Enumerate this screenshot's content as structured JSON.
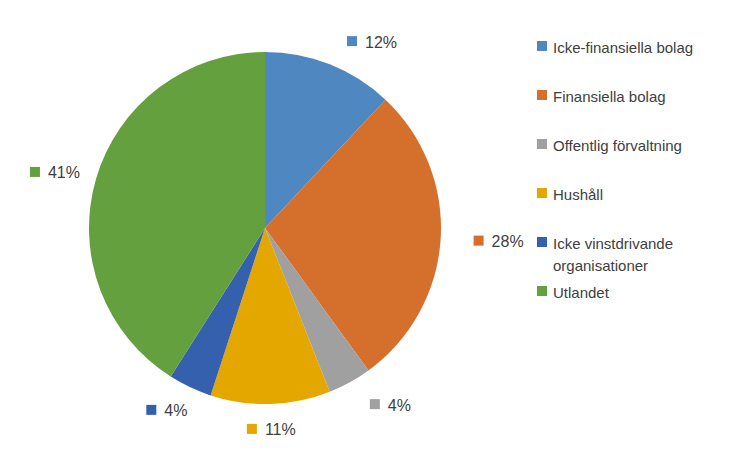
{
  "chart_data": {
    "type": "pie",
    "categories": [
      "Icke-finansiella bolag",
      "Finansiella bolag",
      "Offentlig förvaltning",
      "Hushåll",
      "Icke vinstdrivande organisationer",
      "Utlandet"
    ],
    "values": [
      12,
      28,
      4,
      11,
      4,
      41
    ],
    "value_labels": [
      "12%",
      "28%",
      "4%",
      "11%",
      "4%",
      "41%"
    ],
    "colors": [
      "#4f87c0",
      "#d4702c",
      "#a0a0a0",
      "#e4a700",
      "#3560ae",
      "#65a03f"
    ],
    "data_labels": true,
    "legend": "right"
  }
}
